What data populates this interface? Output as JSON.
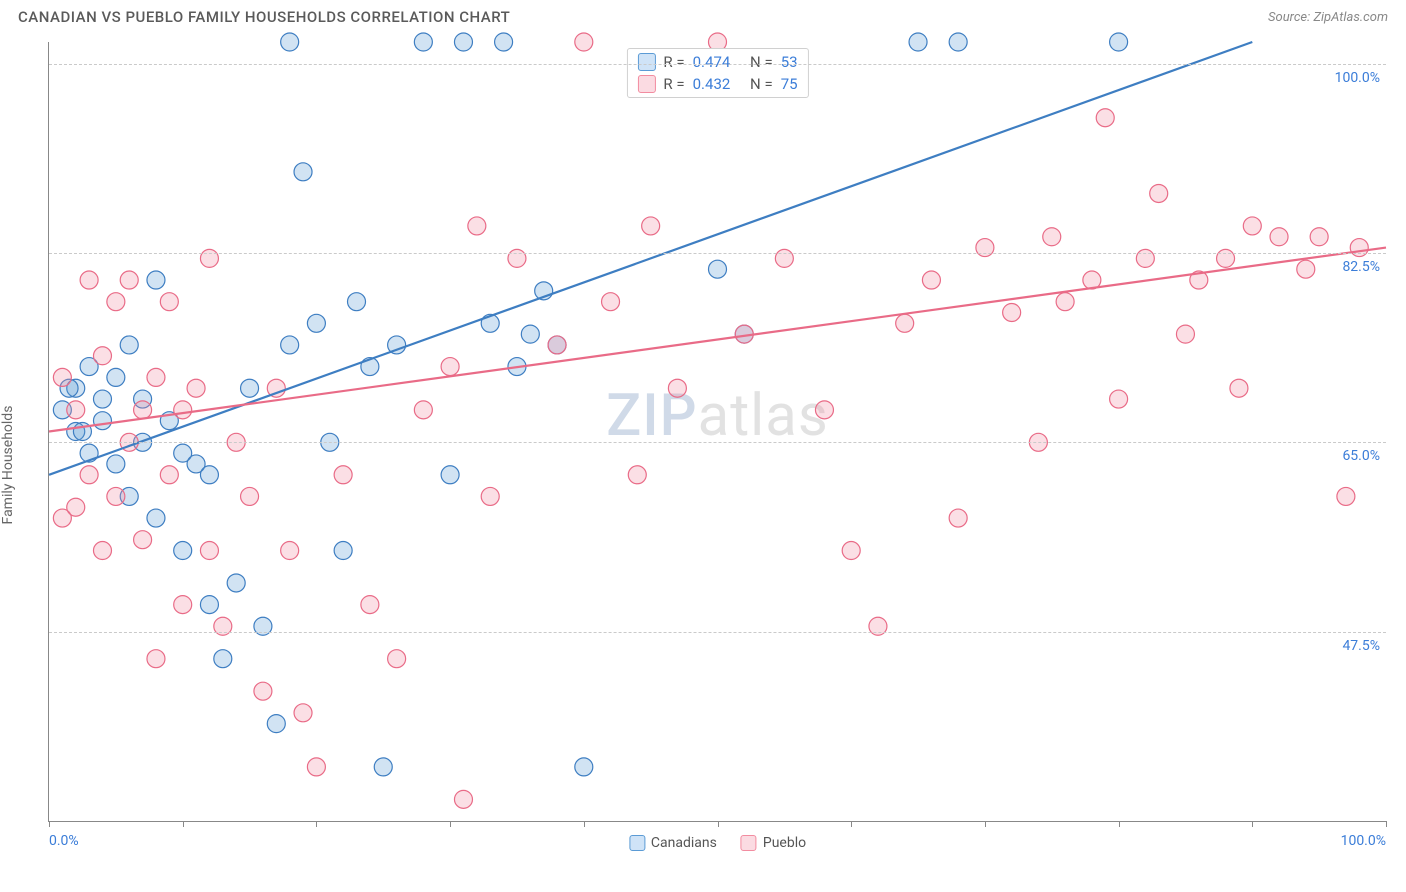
{
  "header": {
    "title": "CANADIAN VS PUEBLO FAMILY HOUSEHOLDS CORRELATION CHART",
    "source_prefix": "Source: ",
    "source": "ZipAtlas.com"
  },
  "chart": {
    "type": "scatter",
    "y_axis_label": "Family Households",
    "xlim": [
      0,
      100
    ],
    "ylim": [
      30,
      102
    ],
    "x_ticks": [
      0,
      10,
      20,
      30,
      40,
      50,
      60,
      70,
      80,
      90,
      100
    ],
    "x_tick_labels": {
      "0": "0.0%",
      "100": "100.0%"
    },
    "y_gridlines": [
      47.5,
      65.0,
      82.5,
      100.0
    ],
    "y_tick_labels": [
      "47.5%",
      "65.0%",
      "82.5%",
      "100.0%"
    ],
    "grid_color": "#cacaca",
    "axis_color": "#888888",
    "background_color": "#ffffff",
    "tick_label_color": "#3b7dd8",
    "marker_radius": 9,
    "marker_stroke_width": 1.2,
    "marker_fill_opacity": 0.28,
    "trend_line_width": 2.2,
    "watermark": {
      "zip": "ZIP",
      "atlas": "atlas"
    }
  },
  "series": [
    {
      "name": "Canadians",
      "color": "#5b9bd5",
      "stroke": "#3e7ec2",
      "r_value": "0.474",
      "n_value": "53",
      "trend": {
        "x1": 0,
        "y1": 62,
        "x2": 90,
        "y2": 102
      },
      "points": [
        [
          1,
          68
        ],
        [
          2,
          70
        ],
        [
          2,
          66
        ],
        [
          3,
          72
        ],
        [
          3,
          64
        ],
        [
          4,
          67
        ],
        [
          4,
          69
        ],
        [
          5,
          71
        ],
        [
          5,
          63
        ],
        [
          6,
          74
        ],
        [
          6,
          60
        ],
        [
          7,
          65
        ],
        [
          7,
          69
        ],
        [
          8,
          80
        ],
        [
          8,
          58
        ],
        [
          9,
          67
        ],
        [
          10,
          64
        ],
        [
          10,
          55
        ],
        [
          11,
          63
        ],
        [
          12,
          50
        ],
        [
          12,
          62
        ],
        [
          13,
          45
        ],
        [
          14,
          52
        ],
        [
          15,
          70
        ],
        [
          16,
          48
        ],
        [
          17,
          39
        ],
        [
          18,
          102
        ],
        [
          18,
          74
        ],
        [
          19,
          90
        ],
        [
          20,
          76
        ],
        [
          21,
          65
        ],
        [
          22,
          55
        ],
        [
          23,
          78
        ],
        [
          24,
          72
        ],
        [
          25,
          35
        ],
        [
          26,
          74
        ],
        [
          28,
          102
        ],
        [
          30,
          62
        ],
        [
          31,
          102
        ],
        [
          33,
          76
        ],
        [
          34,
          102
        ],
        [
          35,
          72
        ],
        [
          36,
          75
        ],
        [
          37,
          79
        ],
        [
          38,
          74
        ],
        [
          40,
          35
        ],
        [
          50,
          81
        ],
        [
          52,
          75
        ],
        [
          65,
          102
        ],
        [
          68,
          102
        ],
        [
          80,
          102
        ],
        [
          1.5,
          70
        ],
        [
          2.5,
          66
        ]
      ]
    },
    {
      "name": "Pueblo",
      "color": "#f28ca0",
      "stroke": "#e96b87",
      "r_value": "0.432",
      "n_value": "75",
      "trend": {
        "x1": 0,
        "y1": 66,
        "x2": 100,
        "y2": 83
      },
      "points": [
        [
          1,
          58
        ],
        [
          1,
          71
        ],
        [
          2,
          68
        ],
        [
          2,
          59
        ],
        [
          3,
          80
        ],
        [
          3,
          62
        ],
        [
          4,
          55
        ],
        [
          4,
          73
        ],
        [
          5,
          78
        ],
        [
          5,
          60
        ],
        [
          6,
          80
        ],
        [
          6,
          65
        ],
        [
          7,
          68
        ],
        [
          7,
          56
        ],
        [
          8,
          71
        ],
        [
          8,
          45
        ],
        [
          9,
          62
        ],
        [
          9,
          78
        ],
        [
          10,
          68
        ],
        [
          10,
          50
        ],
        [
          11,
          70
        ],
        [
          12,
          55
        ],
        [
          12,
          82
        ],
        [
          13,
          48
        ],
        [
          14,
          65
        ],
        [
          15,
          60
        ],
        [
          16,
          42
        ],
        [
          17,
          70
        ],
        [
          18,
          55
        ],
        [
          19,
          40
        ],
        [
          20,
          35
        ],
        [
          22,
          62
        ],
        [
          24,
          50
        ],
        [
          26,
          45
        ],
        [
          28,
          68
        ],
        [
          30,
          72
        ],
        [
          31,
          32
        ],
        [
          32,
          85
        ],
        [
          33,
          60
        ],
        [
          35,
          82
        ],
        [
          38,
          74
        ],
        [
          40,
          102
        ],
        [
          42,
          78
        ],
        [
          44,
          62
        ],
        [
          45,
          85
        ],
        [
          47,
          70
        ],
        [
          50,
          102
        ],
        [
          52,
          75
        ],
        [
          55,
          82
        ],
        [
          58,
          68
        ],
        [
          60,
          55
        ],
        [
          62,
          48
        ],
        [
          64,
          76
        ],
        [
          66,
          80
        ],
        [
          68,
          58
        ],
        [
          70,
          83
        ],
        [
          72,
          77
        ],
        [
          74,
          65
        ],
        [
          75,
          84
        ],
        [
          76,
          78
        ],
        [
          78,
          80
        ],
        [
          79,
          95
        ],
        [
          80,
          69
        ],
        [
          82,
          82
        ],
        [
          83,
          88
        ],
        [
          85,
          75
        ],
        [
          86,
          80
        ],
        [
          88,
          82
        ],
        [
          89,
          70
        ],
        [
          90,
          85
        ],
        [
          92,
          84
        ],
        [
          94,
          81
        ],
        [
          95,
          84
        ],
        [
          97,
          60
        ],
        [
          98,
          83
        ]
      ]
    }
  ],
  "legend": {
    "items": [
      {
        "label": "Canadians",
        "fill": "#cfe3f7",
        "border": "#5b9bd5"
      },
      {
        "label": "Pueblo",
        "fill": "#fbdbe2",
        "border": "#f28ca0"
      }
    ]
  },
  "stats_box": {
    "rows": [
      {
        "swatch_fill": "#cfe3f7",
        "swatch_border": "#5b9bd5",
        "r_label": "R =",
        "r": "0.474",
        "n_label": "N =",
        "n": "53"
      },
      {
        "swatch_fill": "#fbdbe2",
        "swatch_border": "#f28ca0",
        "r_label": "R =",
        "r": "0.432",
        "n_label": "N =",
        "n": "75"
      }
    ]
  }
}
